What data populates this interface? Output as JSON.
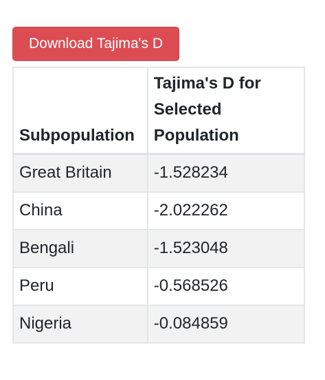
{
  "toolbar": {
    "download_label": "Download Tajima's D"
  },
  "table": {
    "headers": [
      "Subpopulation",
      "Tajima's D for Selected Population"
    ],
    "rows": [
      {
        "subpopulation": "Great Britain",
        "value": "-1.528234"
      },
      {
        "subpopulation": "China",
        "value": "-2.022262"
      },
      {
        "subpopulation": "Bengali",
        "value": "-1.523048"
      },
      {
        "subpopulation": "Peru",
        "value": "-0.568526"
      },
      {
        "subpopulation": "Nigeria",
        "value": "-0.084859"
      }
    ]
  },
  "colors": {
    "button_bg": "#dc4c53",
    "stripe_bg": "#f2f2f2",
    "border": "#e4e7ea"
  }
}
